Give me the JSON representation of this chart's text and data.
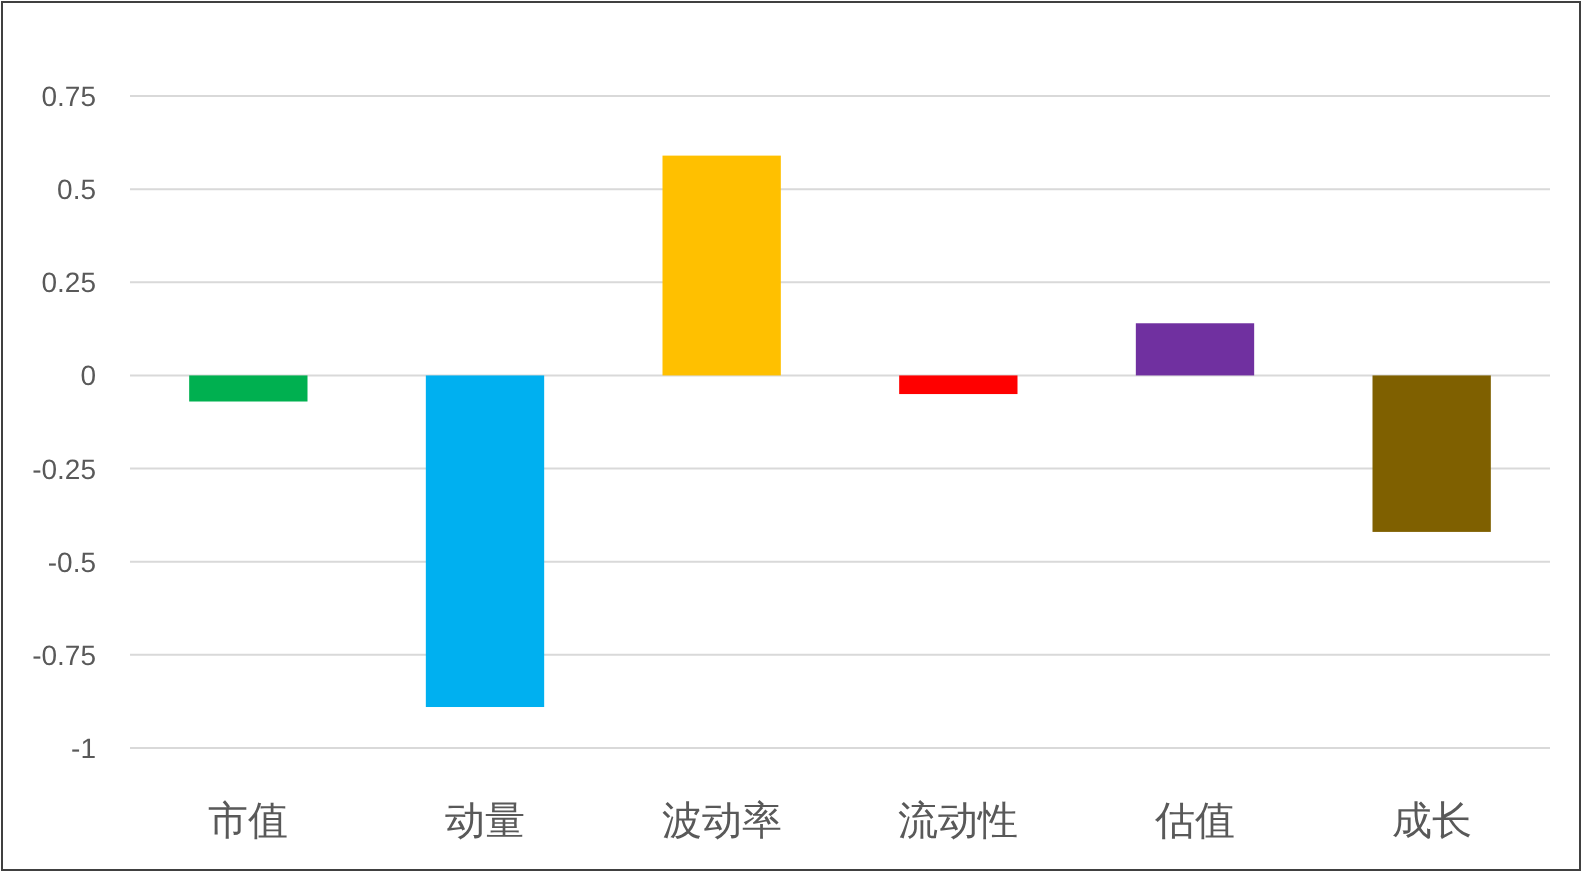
{
  "chart_data": {
    "type": "bar",
    "categories": [
      "市值",
      "动量",
      "波动率",
      "流动性",
      "估值",
      "成长"
    ],
    "values": [
      -0.07,
      -0.89,
      0.59,
      -0.05,
      0.14,
      -0.42
    ],
    "colors": [
      "#00b050",
      "#00b0f0",
      "#ffc000",
      "#ff0000",
      "#7030a0",
      "#7f6000"
    ],
    "ylim": [
      -1,
      0.75
    ],
    "yticks": [
      -1,
      -0.75,
      -0.5,
      -0.25,
      0,
      0.25,
      0.5,
      0.75
    ],
    "grid": "y"
  }
}
